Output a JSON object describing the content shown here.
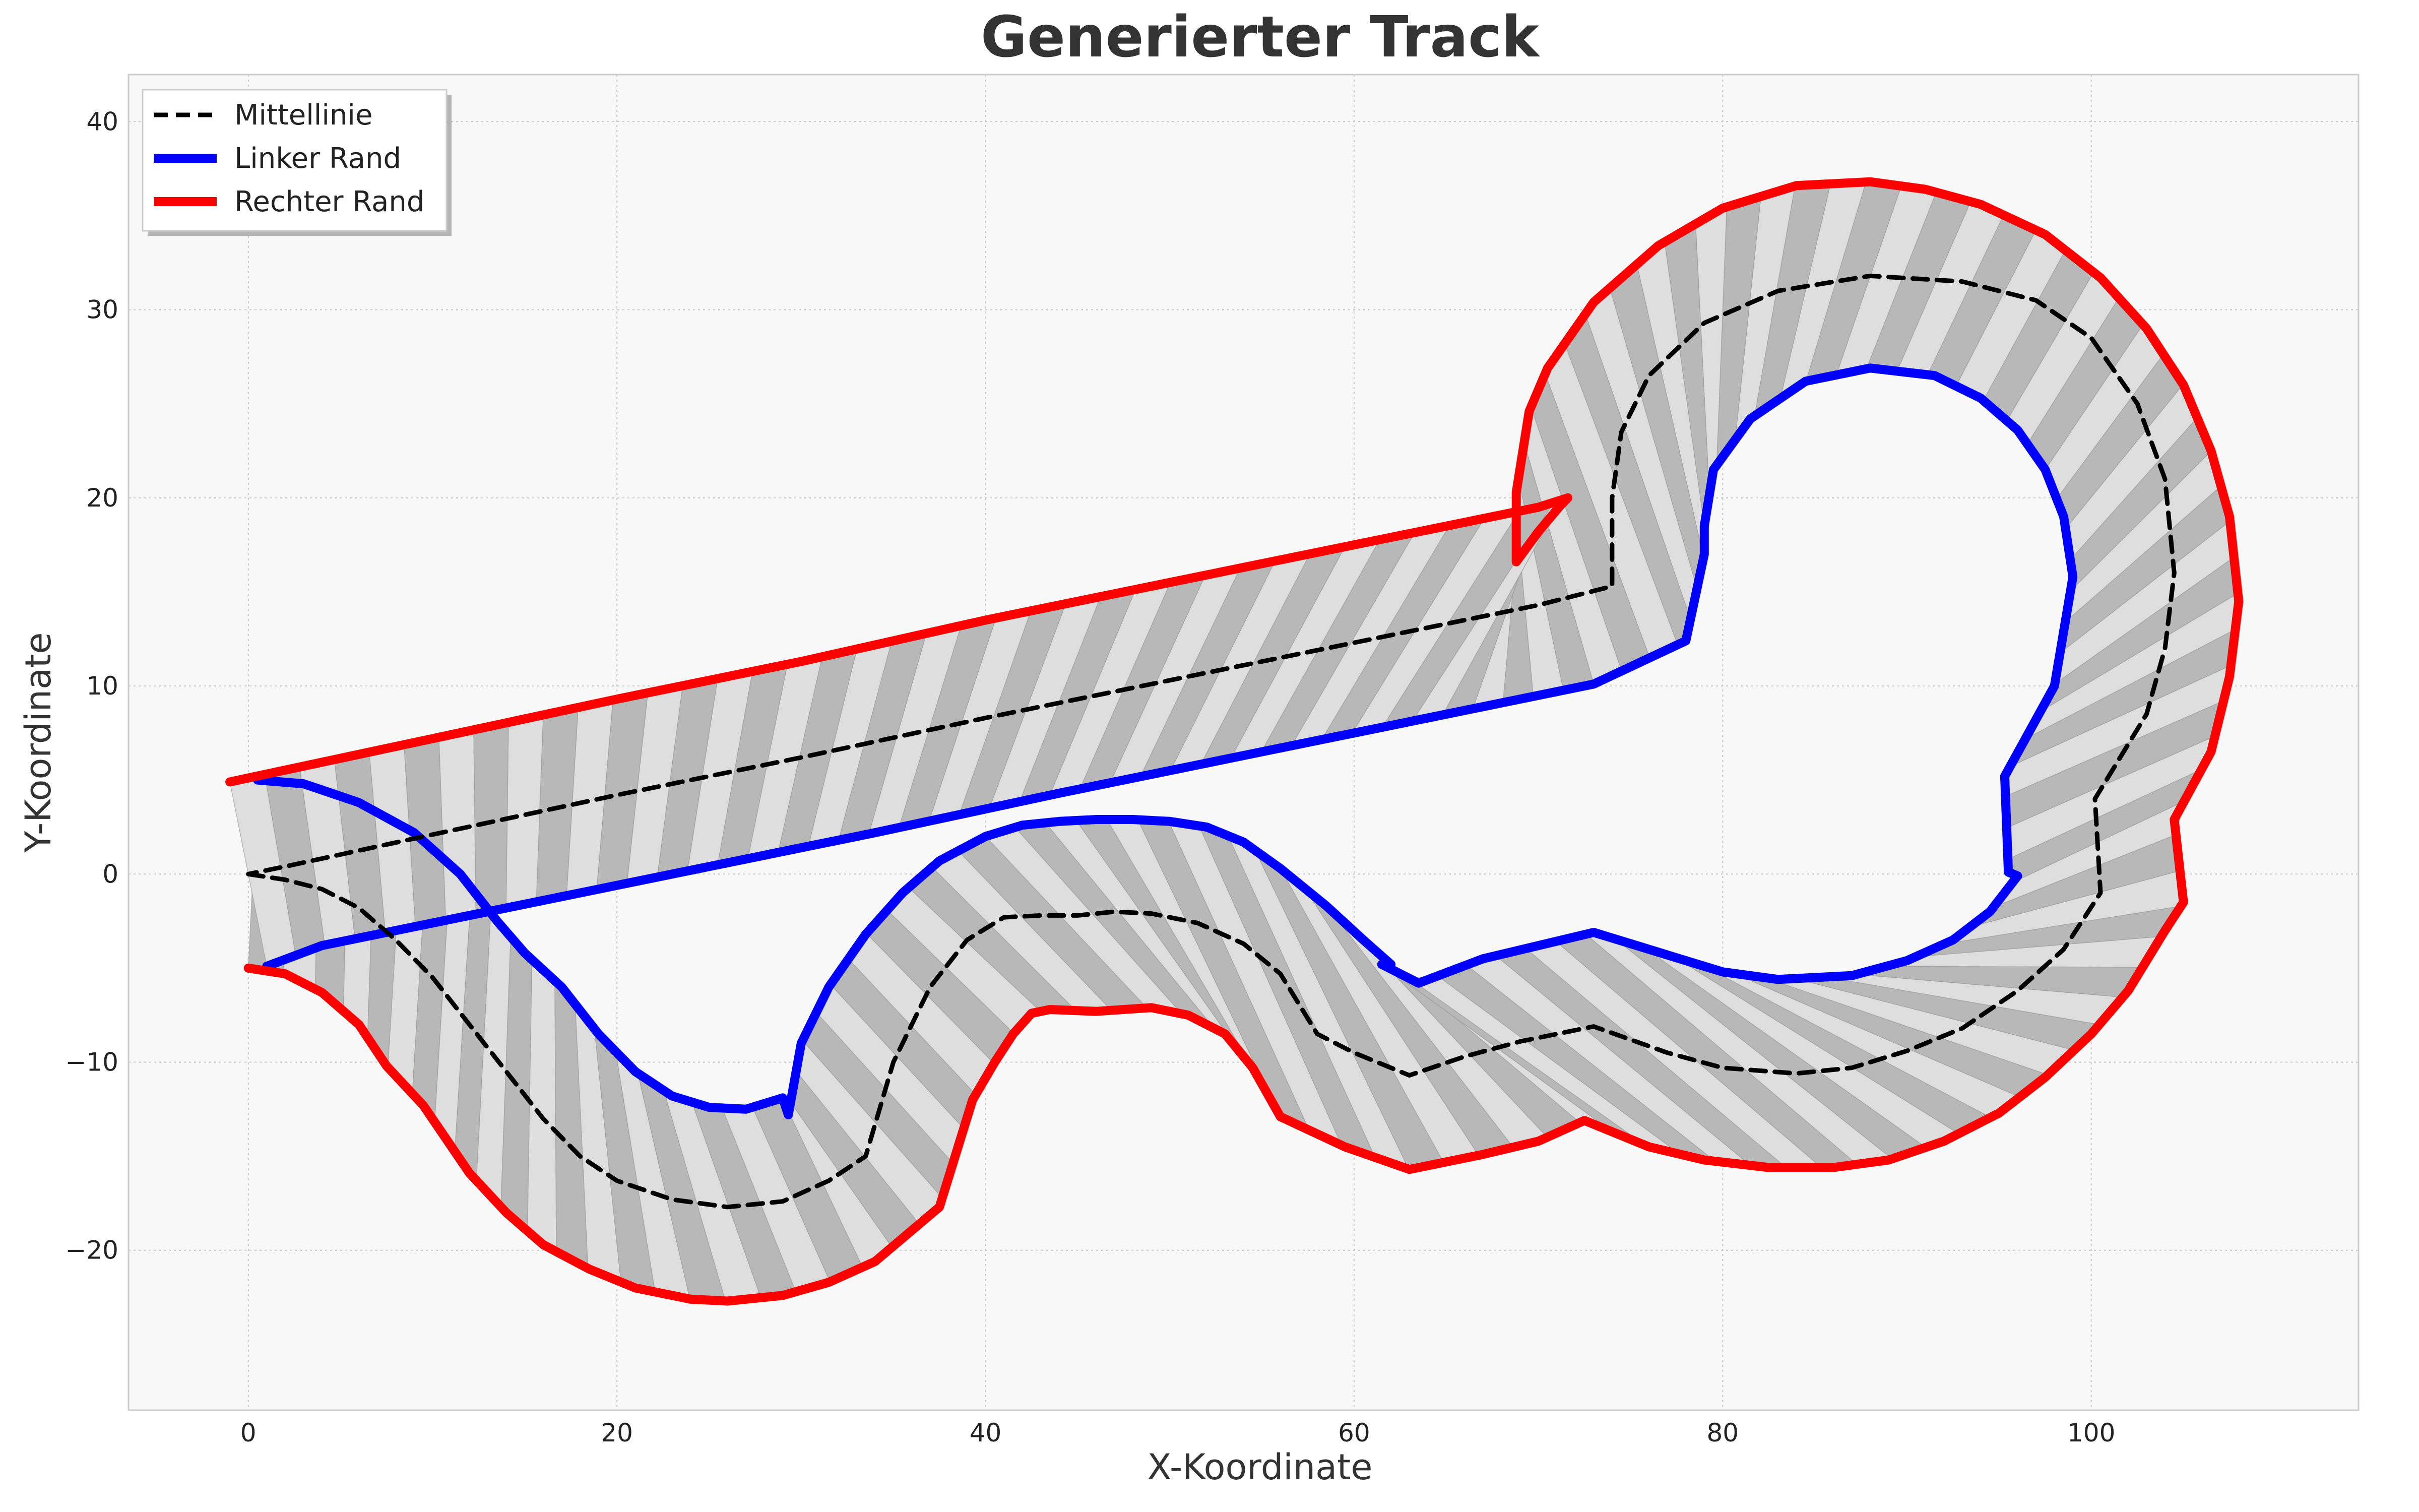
{
  "chart_data": {
    "type": "line",
    "title": "Generierter Track",
    "xlabel": "X-Koordinate",
    "ylabel": "Y-Koordinate",
    "xlim": [
      -6.5,
      114.5
    ],
    "ylim": [
      -28.5,
      42.5
    ],
    "xticks": [
      0,
      20,
      40,
      60,
      80,
      100
    ],
    "yticks": [
      -20,
      -10,
      0,
      10,
      20,
      30,
      40
    ],
    "grid": true,
    "legend_position": "top-left",
    "colors": {
      "centerline": "#000000",
      "left_edge": "#0000ff",
      "right_edge": "#ff0000",
      "track_dark": "#b8b8b8",
      "track_light": "#dedede",
      "plot_bg": "#f8f8f8"
    },
    "series": [
      {
        "name": "Mittellinie",
        "style": "dashed",
        "points": [
          [
            0,
            0
          ],
          [
            2,
            -0.3
          ],
          [
            4,
            -0.8
          ],
          [
            6,
            -1.8
          ],
          [
            8,
            -3.5
          ],
          [
            10,
            -5.5
          ],
          [
            12,
            -8
          ],
          [
            14,
            -10.5
          ],
          [
            16,
            -13
          ],
          [
            18,
            -15
          ],
          [
            20,
            -16.3
          ],
          [
            23,
            -17.3
          ],
          [
            26,
            -17.7
          ],
          [
            29,
            -17.4
          ],
          [
            31.5,
            -16.3
          ],
          [
            33.5,
            -15
          ],
          [
            35,
            -10
          ],
          [
            37,
            -6
          ],
          [
            39,
            -3.5
          ],
          [
            41,
            -2.3
          ],
          [
            43,
            -2.2
          ],
          [
            45,
            -2.2
          ],
          [
            47,
            -2
          ],
          [
            49,
            -2.1
          ],
          [
            51.5,
            -2.6
          ],
          [
            54,
            -3.7
          ],
          [
            56,
            -5.3
          ],
          [
            58,
            -8.5
          ],
          [
            60,
            -9.5
          ],
          [
            63,
            -10.7
          ],
          [
            66,
            -9.7
          ],
          [
            69,
            -8.9
          ],
          [
            73,
            -8.1
          ],
          [
            77,
            -9.5
          ],
          [
            80,
            -10.3
          ],
          [
            84,
            -10.6
          ],
          [
            87,
            -10.3
          ],
          [
            90,
            -9.4
          ],
          [
            93,
            -8.2
          ],
          [
            96,
            -6.2
          ],
          [
            98.5,
            -4
          ],
          [
            100.5,
            -1
          ],
          [
            100.2,
            4
          ],
          [
            103,
            8.5
          ],
          [
            104,
            12
          ],
          [
            104.5,
            16
          ],
          [
            104,
            21
          ],
          [
            102.5,
            25
          ],
          [
            100,
            28.5
          ],
          [
            97,
            30.5
          ],
          [
            93,
            31.5
          ],
          [
            88,
            31.8
          ],
          [
            83,
            31
          ],
          [
            79,
            29.3
          ],
          [
            76,
            26.5
          ],
          [
            74.5,
            23.5
          ],
          [
            74,
            20
          ],
          [
            74,
            15.3
          ],
          [
            70,
            14.3
          ],
          [
            60,
            12.3
          ],
          [
            50,
            10.3
          ],
          [
            40,
            8.3
          ],
          [
            30,
            6.2
          ],
          [
            20,
            4.2
          ],
          [
            10,
            2.1
          ],
          [
            2,
            0.4
          ],
          [
            0,
            0
          ]
        ]
      },
      {
        "name": "Linker Rand",
        "style": "solid",
        "points": [
          [
            0.5,
            5
          ],
          [
            3,
            4.8
          ],
          [
            6,
            3.8
          ],
          [
            9,
            2.2
          ],
          [
            11.5,
            0
          ],
          [
            13.5,
            -2.5
          ],
          [
            15,
            -4.2
          ],
          [
            17,
            -6
          ],
          [
            19,
            -8.5
          ],
          [
            21,
            -10.5
          ],
          [
            23,
            -11.8
          ],
          [
            25,
            -12.4
          ],
          [
            27,
            -12.5
          ],
          [
            29,
            -11.9
          ],
          [
            29.3,
            -12.8
          ],
          [
            30,
            -9
          ],
          [
            31.5,
            -6
          ],
          [
            33.5,
            -3.2
          ],
          [
            35.5,
            -1
          ],
          [
            37.5,
            0.7
          ],
          [
            40,
            2
          ],
          [
            42,
            2.6
          ],
          [
            44,
            2.8
          ],
          [
            46,
            2.9
          ],
          [
            48,
            2.9
          ],
          [
            50,
            2.8
          ],
          [
            52,
            2.5
          ],
          [
            54,
            1.7
          ],
          [
            56,
            0.3
          ],
          [
            58.5,
            -1.7
          ],
          [
            60.5,
            -3.5
          ],
          [
            62,
            -4.8
          ],
          [
            61.5,
            -4.8
          ],
          [
            63.5,
            -5.8
          ],
          [
            67,
            -4.5
          ],
          [
            73,
            -3.1
          ],
          [
            77,
            -4.3
          ],
          [
            80,
            -5.2
          ],
          [
            83,
            -5.6
          ],
          [
            87,
            -5.4
          ],
          [
            90,
            -4.6
          ],
          [
            92.5,
            -3.5
          ],
          [
            94.5,
            -2
          ],
          [
            96,
            -0.1
          ],
          [
            95.5,
            0.1
          ],
          [
            95.3,
            5.2
          ],
          [
            98,
            10
          ],
          [
            99,
            15.8
          ],
          [
            98.5,
            19
          ],
          [
            97.5,
            21.5
          ],
          [
            96,
            23.6
          ],
          [
            94,
            25.3
          ],
          [
            91.5,
            26.5
          ],
          [
            88,
            26.9
          ],
          [
            84.5,
            26.2
          ],
          [
            81.5,
            24.2
          ],
          [
            79.5,
            21.5
          ],
          [
            79,
            18.5
          ],
          [
            79,
            17
          ],
          [
            78,
            12.4
          ],
          [
            73,
            10.1
          ],
          [
            64,
            8.3
          ],
          [
            54,
            6.3
          ],
          [
            44,
            4.3
          ],
          [
            34,
            2.2
          ],
          [
            24,
            0.2
          ],
          [
            14,
            -1.8
          ],
          [
            4,
            -3.8
          ],
          [
            1,
            -4.9
          ]
        ]
      },
      {
        "name": "Rechter Rand",
        "style": "solid",
        "points": [
          [
            0,
            -5
          ],
          [
            2,
            -5.3
          ],
          [
            4,
            -6.3
          ],
          [
            6,
            -8
          ],
          [
            7.5,
            -10.2
          ],
          [
            9.5,
            -12.3
          ],
          [
            12,
            -15.9
          ],
          [
            14,
            -18
          ],
          [
            16,
            -19.7
          ],
          [
            18.5,
            -21
          ],
          [
            21,
            -22
          ],
          [
            24,
            -22.6
          ],
          [
            26,
            -22.7
          ],
          [
            29,
            -22.4
          ],
          [
            31.5,
            -21.7
          ],
          [
            34,
            -20.6
          ],
          [
            37.5,
            -17.7
          ],
          [
            39.3,
            -12
          ],
          [
            40.5,
            -10
          ],
          [
            41.5,
            -8.5
          ],
          [
            42.5,
            -7.4
          ],
          [
            43.5,
            -7.2
          ],
          [
            46,
            -7.3
          ],
          [
            49,
            -7.1
          ],
          [
            51,
            -7.5
          ],
          [
            53,
            -8.5
          ],
          [
            54.5,
            -10.3
          ],
          [
            56,
            -12.9
          ],
          [
            59.5,
            -14.5
          ],
          [
            63,
            -15.7
          ],
          [
            67,
            -14.9
          ],
          [
            70,
            -14.2
          ],
          [
            72.5,
            -13.1
          ],
          [
            76,
            -14.5
          ],
          [
            79,
            -15.2
          ],
          [
            82.5,
            -15.6
          ],
          [
            86,
            -15.6
          ],
          [
            89,
            -15.2
          ],
          [
            92,
            -14.2
          ],
          [
            95,
            -12.7
          ],
          [
            97.5,
            -10.8
          ],
          [
            100,
            -8.5
          ],
          [
            102,
            -6.2
          ],
          [
            104,
            -3
          ],
          [
            105,
            -1.5
          ],
          [
            104.5,
            2.9
          ],
          [
            106.5,
            6.5
          ],
          [
            107.5,
            10.5
          ],
          [
            108,
            14.5
          ],
          [
            107.5,
            19
          ],
          [
            106.5,
            22.5
          ],
          [
            105,
            26
          ],
          [
            103,
            29
          ],
          [
            100.5,
            31.7
          ],
          [
            97.5,
            34
          ],
          [
            94,
            35.6
          ],
          [
            91,
            36.4
          ],
          [
            88,
            36.8
          ],
          [
            84,
            36.6
          ],
          [
            80,
            35.4
          ],
          [
            76.5,
            33.4
          ],
          [
            73,
            30.4
          ],
          [
            70.5,
            26.9
          ],
          [
            69.5,
            24.6
          ],
          [
            68.8,
            20.3
          ],
          [
            68.8,
            16.6
          ],
          [
            70,
            18.2
          ],
          [
            71.2,
            19.6
          ],
          [
            71.6,
            20
          ],
          [
            70,
            19.5
          ],
          [
            60,
            17.5
          ],
          [
            50,
            15.5
          ],
          [
            40,
            13.5
          ],
          [
            30,
            11.3
          ],
          [
            20,
            9.3
          ],
          [
            10,
            7.2
          ],
          [
            -1,
            4.9
          ]
        ]
      }
    ]
  }
}
